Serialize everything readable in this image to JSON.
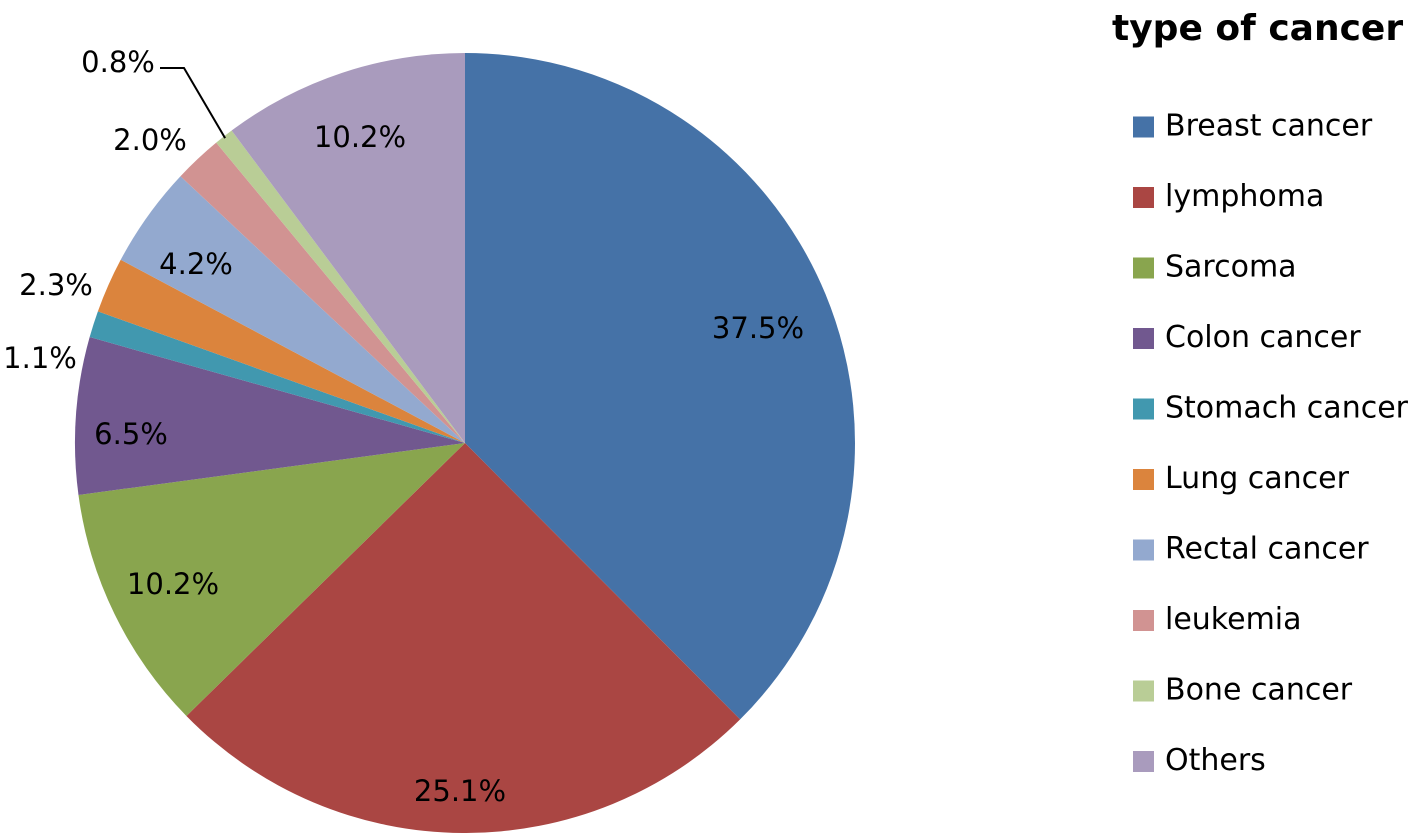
{
  "chart_data": {
    "type": "pie",
    "legend_title": "type of cancer",
    "legend_position": "right",
    "start_angle_deg": 0,
    "direction": "clockwise",
    "slices": [
      {
        "name": "Breast cancer",
        "value": 37.5,
        "label": "37.5%",
        "color": "#4572A7"
      },
      {
        "name": "lymphoma",
        "value": 25.1,
        "label": "25.1%",
        "color": "#AA4643"
      },
      {
        "name": "Sarcoma",
        "value": 10.2,
        "label": "10.2%",
        "color": "#89A54E"
      },
      {
        "name": "Colon cancer",
        "value": 6.5,
        "label": "6.5%",
        "color": "#71588F"
      },
      {
        "name": "Stomach cancer",
        "value": 1.1,
        "label": "1.1%",
        "color": "#4198AF"
      },
      {
        "name": "Lung cancer",
        "value": 2.3,
        "label": "2.3%",
        "color": "#DB843D"
      },
      {
        "name": "Rectal cancer",
        "value": 4.2,
        "label": "4.2%",
        "color": "#93A9CF"
      },
      {
        "name": "leukemia",
        "value": 2.0,
        "label": "2.0%",
        "color": "#D19392"
      },
      {
        "name": "Bone cancer",
        "value": 0.8,
        "label": "0.8%",
        "color": "#B9CD96"
      },
      {
        "name": "Others",
        "value": 10.2,
        "label": "10.2%",
        "color": "#A99BBD"
      }
    ]
  }
}
